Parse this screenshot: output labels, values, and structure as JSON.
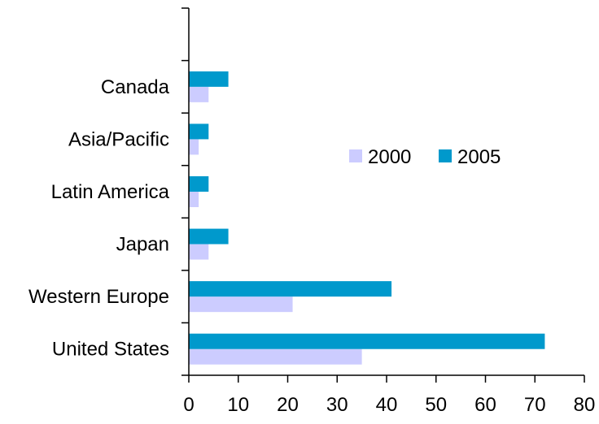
{
  "chart_data": {
    "type": "bar",
    "orientation": "horizontal",
    "categories": [
      "United States",
      "Western Europe",
      "Japan",
      "Latin America",
      "Asia/Pacific",
      "Canada"
    ],
    "series": [
      {
        "name": "2000",
        "color": "#ccccff",
        "values": [
          35,
          21,
          4,
          2,
          2,
          4
        ]
      },
      {
        "name": "2005",
        "color": "#0099cc",
        "values": [
          72,
          41,
          8,
          4,
          4,
          8
        ]
      }
    ],
    "xlim": [
      0,
      80
    ],
    "x_ticks": [
      "0",
      "10",
      "20",
      "30",
      "40",
      "50",
      "60",
      "70",
      "80"
    ],
    "legend": {
      "position": "center-right",
      "entries": [
        "2000",
        "2005"
      ]
    },
    "grid": false
  }
}
